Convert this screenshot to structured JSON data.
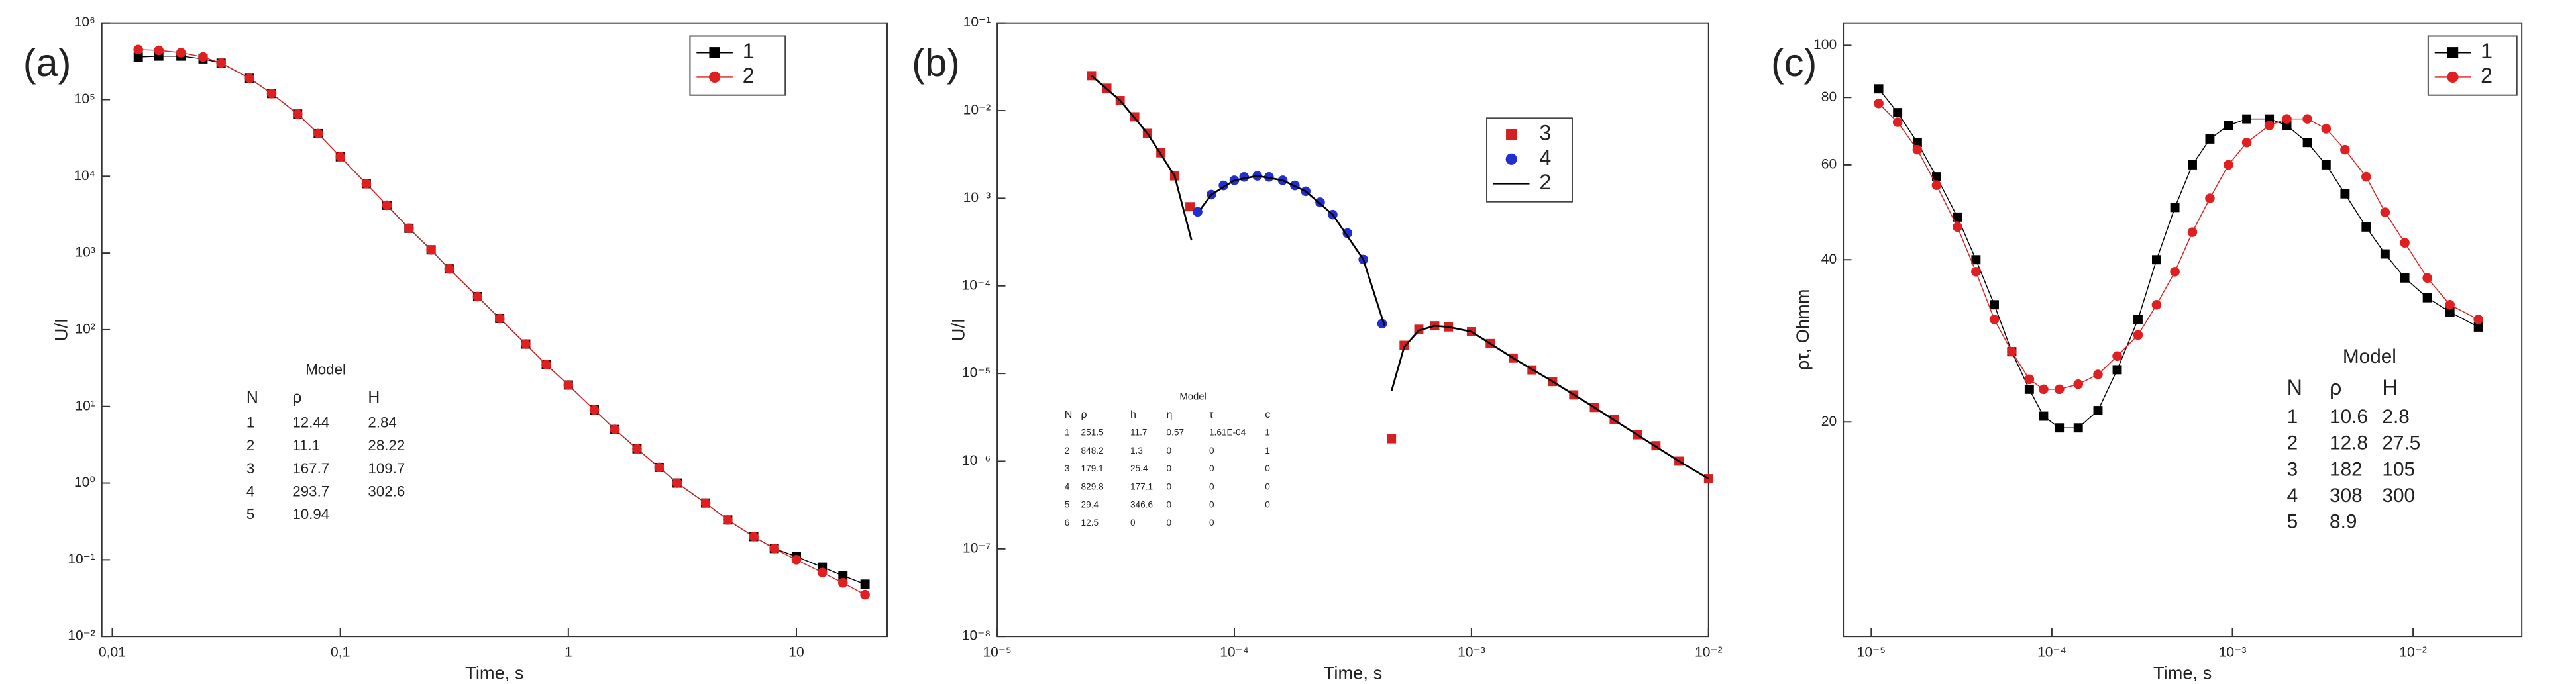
{
  "chart_data": [
    {
      "type": "scatter",
      "panel_label": "(a)",
      "xlabel": "Time, s",
      "ylabel": "U/I",
      "xscale": "log",
      "yscale": "log",
      "grid": false,
      "xlim": [
        0.009,
        25
      ],
      "xticks": [
        {
          "value": 0.01,
          "label": "0,01"
        },
        {
          "value": 0.1,
          "label": "0,1"
        },
        1,
        10
      ],
      "ylim": [
        0.01,
        1000000
      ],
      "yticks": [
        {
          "value": 0.01,
          "label": "10⁻²"
        },
        {
          "value": 0.1,
          "label": "10⁻¹"
        },
        {
          "value": 1,
          "label": "10⁰"
        },
        {
          "value": 10,
          "label": "10¹"
        },
        {
          "value": 100,
          "label": "10²"
        },
        {
          "value": 1000,
          "label": "10³"
        },
        {
          "value": 10000,
          "label": "10⁴"
        },
        {
          "value": 100000,
          "label": "10⁵"
        },
        {
          "value": 1000000,
          "label": "10⁶"
        }
      ],
      "legend": "upper right",
      "x": [
        0.013,
        0.016,
        0.02,
        0.025,
        0.03,
        0.04,
        0.05,
        0.065,
        0.08,
        0.1,
        0.13,
        0.16,
        0.2,
        0.25,
        0.3,
        0.4,
        0.5,
        0.65,
        0.8,
        1,
        1.3,
        1.6,
        2,
        2.5,
        3,
        4,
        5,
        6.5,
        8,
        10,
        13,
        16,
        20
      ],
      "series": [
        {
          "name": "1",
          "color": "#000000",
          "marker": "square",
          "line": true,
          "values": [
            360000,
            370000,
            370000,
            340000,
            300000,
            190000,
            120000,
            65000,
            36000,
            18000,
            8000,
            4200,
            2100,
            1100,
            620,
            270,
            140,
            65,
            35,
            19,
            9,
            5,
            2.8,
            1.6,
            1.0,
            0.55,
            0.33,
            0.2,
            0.14,
            0.11,
            0.08,
            0.062,
            0.048
          ]
        },
        {
          "name": "2",
          "color": "#e02020",
          "marker": "circle",
          "line": true,
          "values": [
            450000,
            440000,
            410000,
            360000,
            300000,
            190000,
            120000,
            65000,
            36000,
            18000,
            8000,
            4200,
            2100,
            1100,
            620,
            270,
            140,
            65,
            35,
            19,
            9,
            5,
            2.8,
            1.6,
            1.0,
            0.55,
            0.33,
            0.2,
            0.14,
            0.1,
            0.068,
            0.05,
            0.035
          ]
        }
      ],
      "model_table": {
        "title": "Model",
        "columns": [
          "N",
          "ρ",
          "H"
        ],
        "rows": [
          [
            "1",
            "12.44",
            "2.84"
          ],
          [
            "2",
            "11.1",
            "28.22"
          ],
          [
            "3",
            "167.7",
            "109.7"
          ],
          [
            "4",
            "293.7",
            "302.6"
          ],
          [
            "5",
            "10.94"
          ]
        ]
      }
    },
    {
      "type": "scatter",
      "panel_label": "(b)",
      "xlabel": "Time, s",
      "ylabel": "U/I",
      "xscale": "log",
      "yscale": "log",
      "grid": false,
      "xlim": [
        1e-05,
        0.01
      ],
      "xticks": [
        {
          "value": 1e-05,
          "label": "10⁻⁵"
        },
        {
          "value": 0.0001,
          "label": "10⁻⁴"
        },
        {
          "value": 0.001,
          "label": "10⁻³"
        },
        {
          "value": 0.01,
          "label": "10⁻²"
        }
      ],
      "ylim": [
        1e-08,
        0.1
      ],
      "yticks": [
        {
          "value": 1e-08,
          "label": "10⁻⁸"
        },
        {
          "value": 1e-07,
          "label": "10⁻⁷"
        },
        {
          "value": 1e-06,
          "label": "10⁻⁶"
        },
        {
          "value": 1e-05,
          "label": "10⁻⁵"
        },
        {
          "value": 0.0001,
          "label": "10⁻⁴"
        },
        {
          "value": 0.001,
          "label": "10⁻³"
        },
        {
          "value": 0.01,
          "label": "10⁻²"
        },
        {
          "value": 0.1,
          "label": "10⁻¹"
        }
      ],
      "legend": "upper right",
      "series": [
        {
          "name": "3",
          "color": "#d42020",
          "marker": "square",
          "line": false,
          "x": [
            2.5e-05,
            2.9e-05,
            3.3e-05,
            3.8e-05,
            4.3e-05,
            4.9e-05,
            5.6e-05,
            6.5e-05,
            0.00046,
            0.00052,
            0.0006,
            0.0007,
            0.0008,
            0.001,
            0.0012,
            0.0015,
            0.0018,
            0.0022,
            0.0027,
            0.0033,
            0.004,
            0.005,
            0.006,
            0.0075,
            0.01
          ],
          "values": [
            0.025,
            0.018,
            0.013,
            0.0085,
            0.0055,
            0.0033,
            0.0018,
            0.0008,
            1.8e-06,
            2.1e-05,
            3.2e-05,
            3.5e-05,
            3.4e-05,
            3e-05,
            2.2e-05,
            1.5e-05,
            1.1e-05,
            8.1e-06,
            5.7e-06,
            4.1e-06,
            3e-06,
            2e-06,
            1.5e-06,
            1e-06,
            6.3e-07
          ]
        },
        {
          "name": "4",
          "color": "#1f2fd0",
          "marker": "circle",
          "line": false,
          "x": [
            7e-05,
            8e-05,
            9e-05,
            0.0001,
            0.00011,
            0.000125,
            0.00014,
            0.00016,
            0.00018,
            0.0002,
            0.00023,
            0.00026,
            0.0003,
            0.00035,
            0.00042
          ],
          "values": [
            0.0007,
            0.0011,
            0.0014,
            0.0016,
            0.00175,
            0.0018,
            0.00175,
            0.0016,
            0.0014,
            0.0012,
            0.0009,
            0.00065,
            0.0004,
            0.0002,
            3.7e-05
          ]
        },
        {
          "name": "2",
          "color": "#000000",
          "marker": "none",
          "line": true,
          "x": [
            2.5e-05,
            3.3e-05,
            4.3e-05,
            5.6e-05,
            6.6e-05,
            6.8e-05,
            7.2e-05,
            8e-05,
            0.0001,
            0.000125,
            0.00016,
            0.0002,
            0.00026,
            0.00035,
            0.00043,
            0.00045,
            0.00046,
            0.00052,
            0.0006,
            0.0007,
            0.0008,
            0.001,
            0.0015,
            0.0022,
            0.0033,
            0.005,
            0.0075,
            0.01
          ],
          "values": [
            0.025,
            0.013,
            0.0055,
            0.0018,
            0.00033,
            null,
            0.00075,
            0.0011,
            0.0016,
            0.0018,
            0.0016,
            0.0012,
            0.00065,
            0.0002,
            3.5e-05,
            null,
            6.3e-06,
            2e-05,
            3.1e-05,
            3.5e-05,
            3.4e-05,
            3e-05,
            1.5e-05,
            8.1e-06,
            4.1e-06,
            2e-06,
            1e-06,
            6.3e-07
          ]
        }
      ],
      "model_table": {
        "title": "Model",
        "columns": [
          "N",
          "ρ",
          "h",
          "η",
          "τ",
          "c"
        ],
        "rows": [
          [
            "1",
            "251.5",
            "11.7",
            "0.57",
            "1.61E-04",
            "1"
          ],
          [
            "2",
            "848.2",
            "1.3",
            "0",
            "0",
            "1"
          ],
          [
            "3",
            "179.1",
            "25.4",
            "0",
            "0",
            "0"
          ],
          [
            "4",
            "829.8",
            "177.1",
            "0",
            "0",
            "0"
          ],
          [
            "5",
            "29.4",
            "346.6",
            "0",
            "0",
            "0"
          ],
          [
            "6",
            "12.5",
            "0",
            "0",
            "0"
          ]
        ]
      }
    },
    {
      "type": "scatter",
      "panel_label": "(c)",
      "xlabel": "Time, s",
      "ylabel": "ρτ, Ohmm",
      "xscale": "log",
      "yscale": "log",
      "grid": false,
      "xlim": [
        7e-06,
        0.04
      ],
      "xticks": [
        {
          "value": 1e-05,
          "label": "10⁻⁵"
        },
        {
          "value": 0.0001,
          "label": "10⁻⁴"
        },
        {
          "value": 0.001,
          "label": "10⁻³"
        },
        {
          "value": 0.01,
          "label": "10⁻²"
        }
      ],
      "ylim": [
        8,
        110
      ],
      "yticks": [
        20,
        40,
        60,
        80,
        100
      ],
      "legend": "upper right",
      "x": [
        1.1e-05,
        1.4e-05,
        1.8e-05,
        2.3e-05,
        3e-05,
        3.8e-05,
        4.8e-05,
        6e-05,
        7.5e-05,
        9e-05,
        0.00011,
        0.00014,
        0.00018,
        0.00023,
        0.0003,
        0.00038,
        0.00048,
        0.0006,
        0.00075,
        0.00095,
        0.0012,
        0.0016,
        0.002,
        0.0026,
        0.0033,
        0.0042,
        0.0055,
        0.007,
        0.009,
        0.012,
        0.016,
        0.023
      ],
      "series": [
        {
          "name": "1",
          "color": "#000000",
          "marker": "square",
          "line": true,
          "values": [
            83,
            75,
            66,
            57,
            48,
            40,
            33,
            27,
            23,
            20.5,
            19.5,
            19.5,
            21,
            25,
            31,
            40,
            50,
            60,
            67,
            71,
            73,
            73,
            71,
            66,
            60,
            53,
            46,
            41,
            37,
            34,
            32,
            30
          ]
        },
        {
          "name": "2",
          "color": "#e02020",
          "marker": "circle",
          "line": true,
          "values": [
            78,
            72,
            64,
            55,
            46,
            38,
            31,
            27,
            24,
            23,
            23,
            23.5,
            24.5,
            26.5,
            29,
            33,
            38,
            45,
            52,
            60,
            66,
            71,
            73,
            73,
            70,
            64,
            57,
            49,
            43,
            37,
            33,
            31
          ]
        }
      ],
      "model_table": {
        "title": "Model",
        "columns": [
          "N",
          "ρ",
          "H"
        ],
        "rows": [
          [
            "1",
            "10.6",
            "2.8"
          ],
          [
            "2",
            "12.8",
            "27.5"
          ],
          [
            "3",
            "182",
            "105"
          ],
          [
            "4",
            "308",
            "300"
          ],
          [
            "5",
            "8.9"
          ]
        ]
      }
    }
  ]
}
